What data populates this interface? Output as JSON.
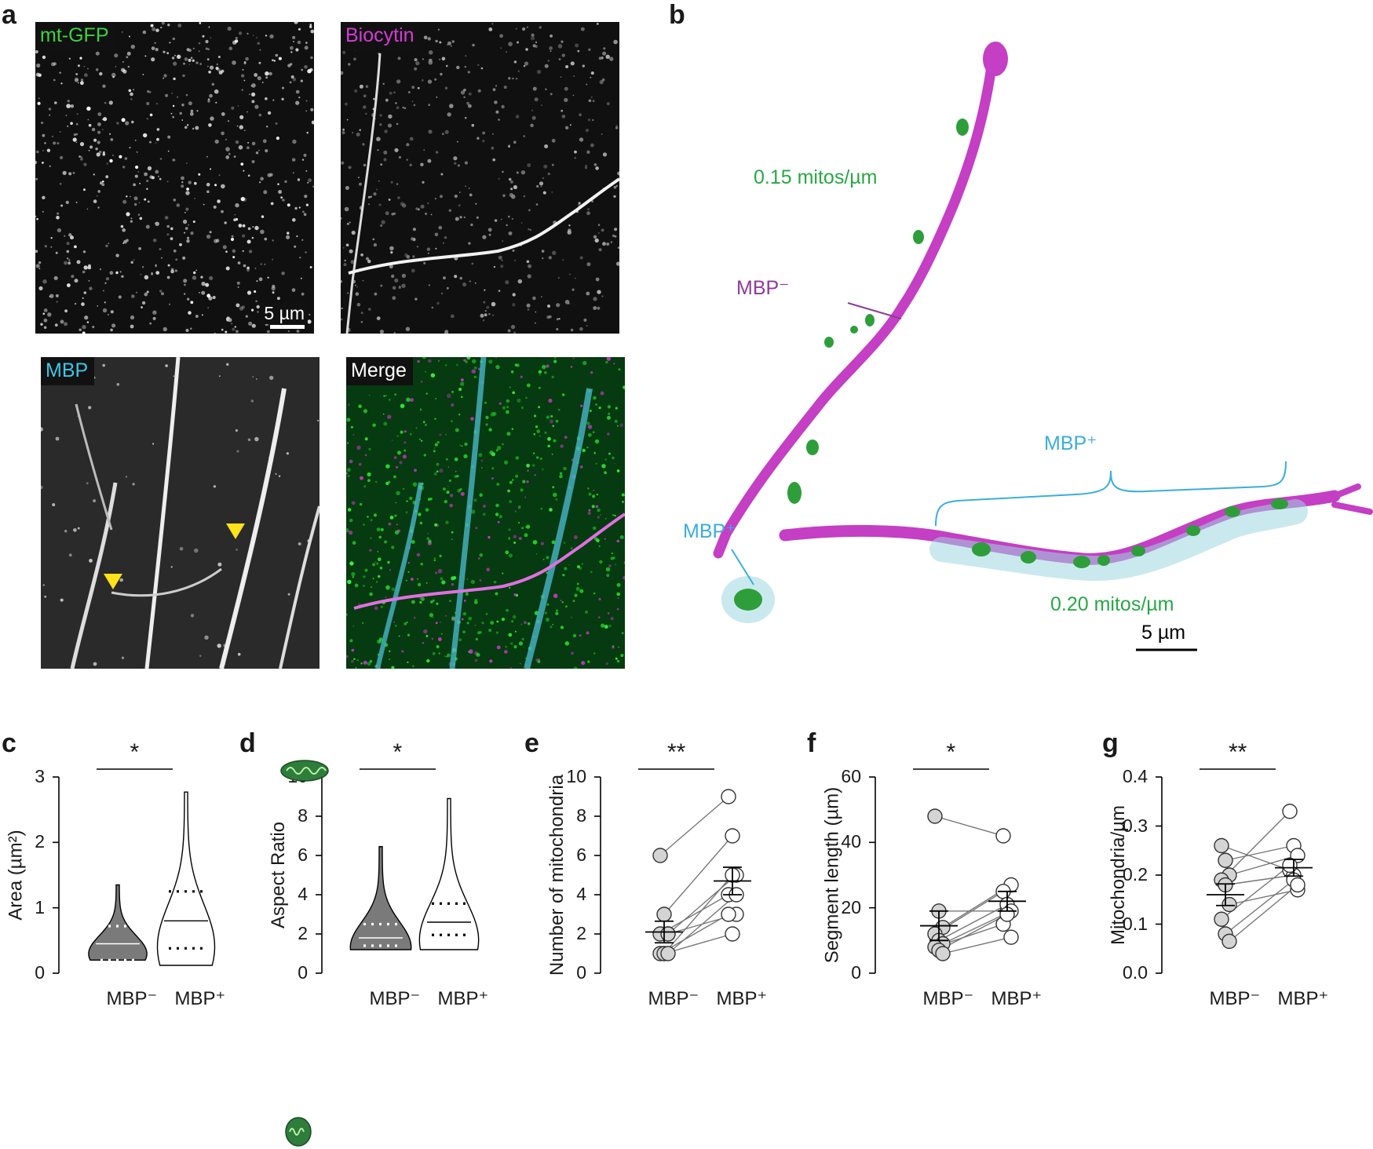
{
  "panel_labels": {
    "a": "a",
    "b": "b",
    "c": "c",
    "d": "d",
    "e": "e",
    "f": "f",
    "g": "g"
  },
  "panel_a": {
    "tiles": [
      {
        "label": "mt-GFP",
        "color": "#3fd13f"
      },
      {
        "label": "Biocytin",
        "color": "#d63ad6"
      },
      {
        "label": "MBP",
        "color": "#3cc7e6"
      },
      {
        "label": "Merge",
        "color": "#ffffff"
      }
    ],
    "scalebar": "5 µm"
  },
  "panel_b": {
    "density_top": "0.15 mitos/µm",
    "density_bottom": "0.20 mitos/µm",
    "mbp_minus_label": "MBP⁻",
    "mbp_plus_label_left": "MBP⁺",
    "mbp_plus_label_right": "MBP⁺",
    "scalebar": "5 µm",
    "colors": {
      "axon": "#c43fc4",
      "mito": "#2e9e3b",
      "sheath": "#9fd7e0",
      "label_green": "#27a844",
      "label_blue": "#3aaedc",
      "label_purple": "#8e3b9a"
    }
  },
  "charts": {
    "c": {
      "ylabel": "Area  (µm²)",
      "star": "*",
      "ticks": [
        "0",
        "1",
        "2",
        "3"
      ],
      "categories": [
        "MBP⁻",
        "MBP⁺"
      ]
    },
    "d": {
      "ylabel": "Aspect Ratio",
      "star": "*",
      "ticks": [
        "0",
        "2",
        "4",
        "6",
        "8",
        "10"
      ],
      "categories": [
        "MBP⁻",
        "MBP⁺"
      ]
    },
    "e": {
      "ylabel": "Number of mitochondria",
      "star": "**",
      "ticks": [
        "0",
        "2",
        "4",
        "6",
        "8",
        "10"
      ],
      "categories": [
        "MBP⁻",
        "MBP⁺"
      ]
    },
    "f": {
      "ylabel": "Segment length (µm)",
      "star": "*",
      "ticks": [
        "0",
        "20",
        "40",
        "60"
      ],
      "categories": [
        "MBP⁻",
        "MBP⁺"
      ]
    },
    "g": {
      "ylabel": "Mitochondria/µm",
      "star": "**",
      "ticks": [
        "0.0",
        "0.1",
        "0.2",
        "0.3",
        "0.4"
      ],
      "categories": [
        "MBP⁻",
        "MBP⁺"
      ]
    }
  },
  "chart_data": [
    {
      "id": "c",
      "type": "violin",
      "ylabel": "Area  (µm²)",
      "ylim": [
        0,
        3
      ],
      "categories": [
        "MBP⁻",
        "MBP⁺"
      ],
      "series": [
        {
          "category": "MBP⁻",
          "min": 0.2,
          "max": 1.35,
          "median": 0.45,
          "q1": 0.2,
          "q3": 0.72
        },
        {
          "category": "MBP⁺",
          "min": 0.12,
          "max": 2.77,
          "median": 0.8,
          "q1": 0.38,
          "q3": 1.25
        }
      ],
      "significance": "*"
    },
    {
      "id": "d",
      "type": "violin",
      "ylabel": "Aspect Ratio",
      "ylim": [
        0,
        10
      ],
      "categories": [
        "MBP⁻",
        "MBP⁺"
      ],
      "series": [
        {
          "category": "MBP⁻",
          "min": 1.2,
          "max": 6.45,
          "median": 1.8,
          "q1": 1.4,
          "q3": 2.5
        },
        {
          "category": "MBP⁺",
          "min": 1.2,
          "max": 8.9,
          "median": 2.6,
          "q1": 1.95,
          "q3": 3.55
        }
      ],
      "significance": "*"
    },
    {
      "id": "e",
      "type": "paired-scatter",
      "ylabel": "Number of mitochondria",
      "ylim": [
        0,
        10
      ],
      "categories": [
        "MBP⁻",
        "MBP⁺"
      ],
      "pairs": [
        [
          6,
          9
        ],
        [
          3,
          7
        ],
        [
          2,
          5
        ],
        [
          2,
          4
        ],
        [
          1,
          5
        ],
        [
          2,
          3
        ],
        [
          1,
          3
        ],
        [
          1,
          2
        ],
        [
          1,
          4
        ]
      ],
      "mean": [
        2.1,
        4.7
      ],
      "sem": [
        0.55,
        0.7
      ],
      "significance": "**"
    },
    {
      "id": "f",
      "type": "paired-scatter",
      "ylabel": "Segment length (µm)",
      "ylim": [
        0,
        60
      ],
      "categories": [
        "MBP⁻",
        "MBP⁺"
      ],
      "pairs": [
        [
          48,
          42
        ],
        [
          19,
          19
        ],
        [
          14,
          27
        ],
        [
          12,
          25
        ],
        [
          10,
          21
        ],
        [
          9,
          19
        ],
        [
          8,
          15
        ],
        [
          7,
          18
        ],
        [
          6,
          11
        ]
      ],
      "mean": [
        14.5,
        22
      ],
      "sem": [
        4.5,
        3
      ],
      "significance": "*"
    },
    {
      "id": "g",
      "type": "paired-scatter",
      "ylabel": "Mitochondria/µm",
      "ylim": [
        0,
        0.4
      ],
      "categories": [
        "MBP⁻",
        "MBP⁺"
      ],
      "pairs": [
        [
          0.26,
          0.21
        ],
        [
          0.23,
          0.26
        ],
        [
          0.2,
          0.24
        ],
        [
          0.19,
          0.33
        ],
        [
          0.18,
          0.2
        ],
        [
          0.14,
          0.17
        ],
        [
          0.11,
          0.22
        ],
        [
          0.08,
          0.19
        ],
        [
          0.065,
          0.18
        ]
      ],
      "mean": [
        0.16,
        0.215
      ],
      "sem": [
        0.022,
        0.017
      ],
      "significance": "**"
    }
  ]
}
